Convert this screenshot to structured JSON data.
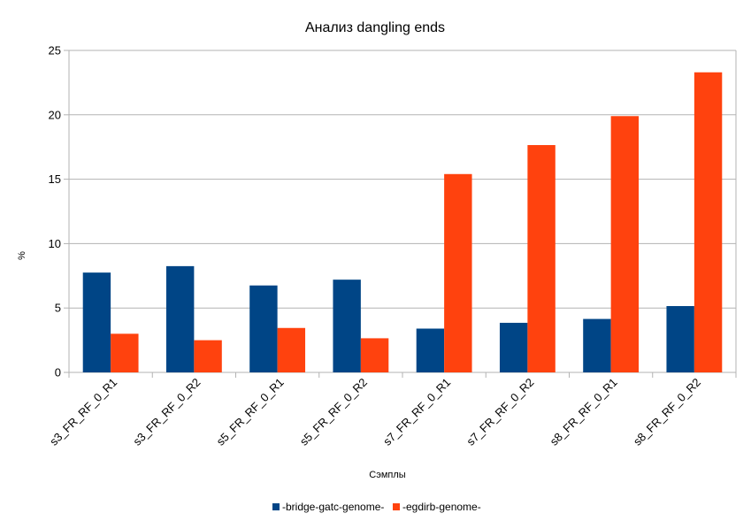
{
  "chart_data": {
    "type": "bar",
    "title": "Анализ dangling ends",
    "xlabel": "Сэмплы",
    "ylabel": "%",
    "ylim": [
      0,
      25
    ],
    "yticks": [
      0,
      5,
      10,
      15,
      20,
      25
    ],
    "grid": true,
    "legend_position": "bottom",
    "categories": [
      "s3_FR_RF_0_R1",
      "s3_FR_RF_0_R2",
      "s5_FR_RF_0_R1",
      "s5_FR_RF_0_R2",
      "s7_FR_RF_0_R1",
      "s7_FR_RF_0_R2",
      "s8_FR_RF_0_R1",
      "s8_FR_RF_0_R2"
    ],
    "series": [
      {
        "name": "-bridge-gatc-genome-",
        "color": "#004586",
        "values": [
          7.75,
          8.25,
          6.75,
          7.2,
          3.4,
          3.85,
          4.15,
          5.15
        ]
      },
      {
        "name": "-egdirb-genome-",
        "color": "#ff420e",
        "values": [
          3.0,
          2.5,
          3.45,
          2.65,
          15.4,
          17.65,
          19.9,
          23.3
        ]
      }
    ]
  }
}
